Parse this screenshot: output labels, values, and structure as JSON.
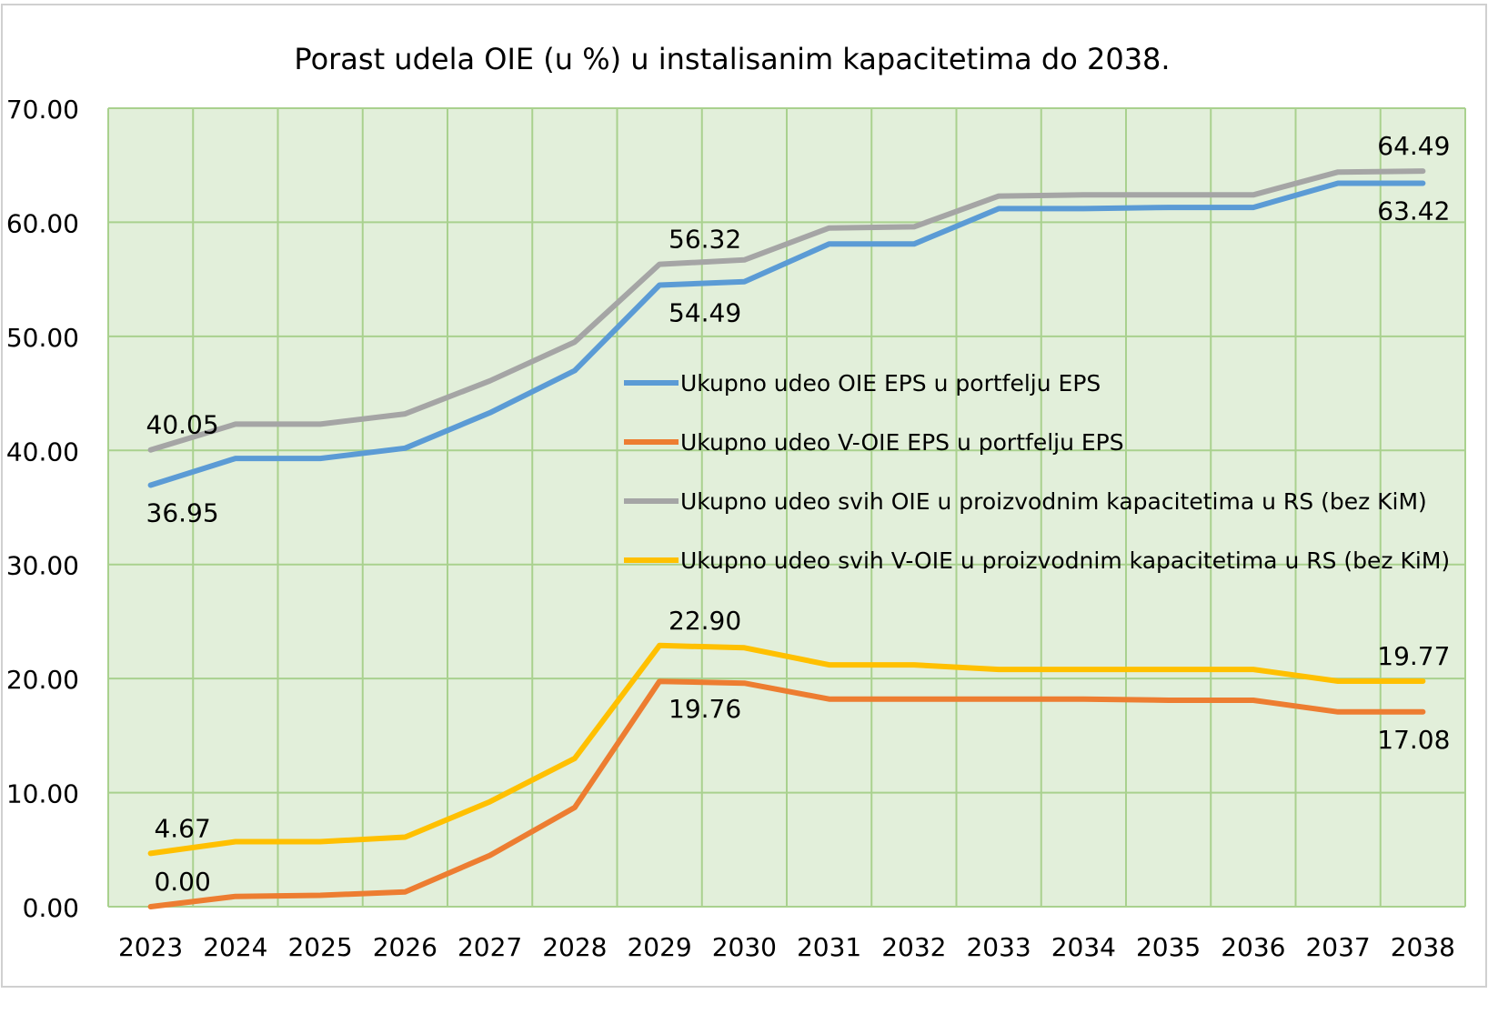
{
  "chart_data": {
    "type": "line",
    "title": "Porast udela OIE (u %) u instalisanim kapacitetima do 2038.",
    "xlabel": "",
    "ylabel": "",
    "ylim": [
      0,
      70
    ],
    "y_ticks": [
      "0.00",
      "10.00",
      "20.00",
      "30.00",
      "40.00",
      "50.00",
      "60.00",
      "70.00"
    ],
    "categories": [
      "2023",
      "2024",
      "2025",
      "2026",
      "2027",
      "2028",
      "2029",
      "2030",
      "2031",
      "2032",
      "2033",
      "2034",
      "2035",
      "2036",
      "2037",
      "2038"
    ],
    "grid": true,
    "legend_position": "center-right",
    "plot_background": "#e2efda",
    "grid_color": "#a9d18e",
    "series": [
      {
        "name": "Ukupno udeo OIE EPS u portfelju EPS",
        "color": "#5b9bd5",
        "values": [
          36.95,
          39.3,
          39.3,
          40.2,
          43.3,
          47.0,
          54.49,
          54.8,
          58.1,
          58.1,
          61.2,
          61.2,
          61.3,
          61.3,
          63.42,
          63.42
        ],
        "labels": [
          {
            "index": 0,
            "text": "36.95",
            "pos": "below"
          },
          {
            "index": 6,
            "text": "54.49",
            "pos": "below"
          },
          {
            "index": 15,
            "text": "63.42",
            "pos": "below"
          }
        ]
      },
      {
        "name": "Ukupno udeo V-OIE EPS u portfelju EPS",
        "color": "#ed7d31",
        "values": [
          0.0,
          0.9,
          1.0,
          1.3,
          4.5,
          8.7,
          19.76,
          19.6,
          18.2,
          18.2,
          18.2,
          18.2,
          18.1,
          18.1,
          17.08,
          17.08
        ],
        "labels": [
          {
            "index": 0,
            "text": "0.00",
            "pos": "above"
          },
          {
            "index": 6,
            "text": "19.76",
            "pos": "below"
          },
          {
            "index": 15,
            "text": "17.08",
            "pos": "below"
          }
        ]
      },
      {
        "name": "Ukupno udeo svih OIE u proizvodnim kapacitetima u RS (bez KiM)",
        "color": "#a5a5a5",
        "values": [
          40.05,
          42.3,
          42.3,
          43.2,
          46.1,
          49.5,
          56.32,
          56.7,
          59.5,
          59.6,
          62.3,
          62.4,
          62.4,
          62.4,
          64.4,
          64.49
        ],
        "labels": [
          {
            "index": 0,
            "text": "40.05",
            "pos": "above"
          },
          {
            "index": 6,
            "text": "56.32",
            "pos": "above"
          },
          {
            "index": 15,
            "text": "64.49",
            "pos": "above"
          }
        ]
      },
      {
        "name": "Ukupno udeo svih V-OIE u proizvodnim kapacitetima u RS (bez KiM)",
        "color": "#ffc000",
        "values": [
          4.67,
          5.7,
          5.7,
          6.1,
          9.2,
          13.0,
          22.9,
          22.7,
          21.2,
          21.2,
          20.8,
          20.8,
          20.8,
          20.8,
          19.77,
          19.77
        ],
        "labels": [
          {
            "index": 0,
            "text": "4.67",
            "pos": "above"
          },
          {
            "index": 6,
            "text": "22.90",
            "pos": "above"
          },
          {
            "index": 15,
            "text": "19.77",
            "pos": "above"
          }
        ]
      }
    ]
  }
}
